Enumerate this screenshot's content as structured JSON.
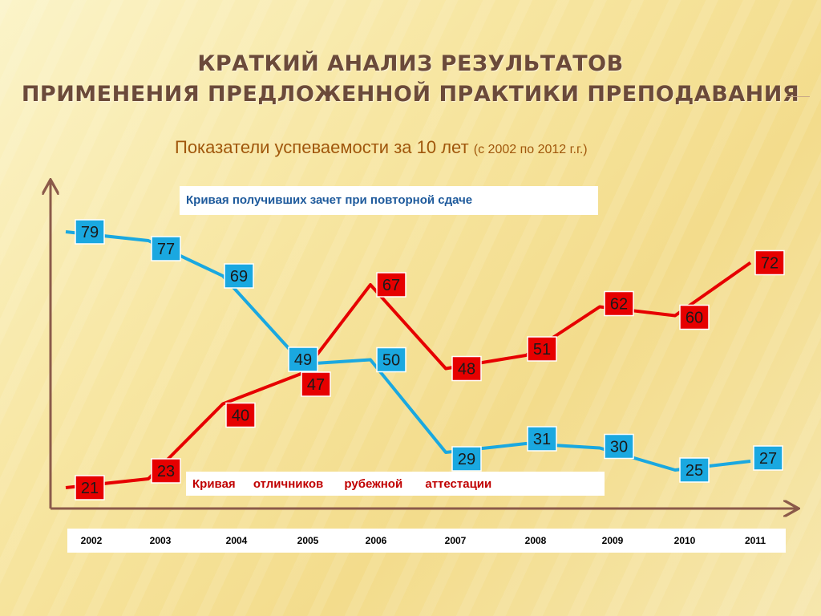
{
  "header": {
    "title_line1": "КРАТКИЙ АНАЛИЗ РЕЗУЛЬТАТОВ",
    "title_line2": "ПРИМЕНЕНИЯ  ПРЕДЛОЖЕННОЙ ПРАКТИКИ ПРЕПОДАВАНИЯ",
    "subtitle_main": "Показатели успеваемости  за 10 лет",
    "subtitle_note": "(с 2002 по 2012 г.г.)"
  },
  "chart_data": {
    "type": "line",
    "categories": [
      "2002",
      "2003",
      "2004",
      "2005",
      "2006",
      "2007",
      "2008",
      "2009",
      "2010",
      "2011"
    ],
    "legend_blue": "Кривая  получивших зачет при повторной сдаче",
    "legend_red_parts": [
      "Кривая",
      "отличников",
      "рубежной",
      "аттестации"
    ],
    "series": [
      {
        "color": "#1aa8e0",
        "values": [
          79,
          77,
          69,
          49,
          50,
          29,
          31,
          30,
          25,
          27
        ]
      },
      {
        "color": "#e60000",
        "values": [
          21,
          23,
          40,
          47,
          67,
          48,
          51,
          62,
          60,
          72
        ]
      }
    ]
  }
}
